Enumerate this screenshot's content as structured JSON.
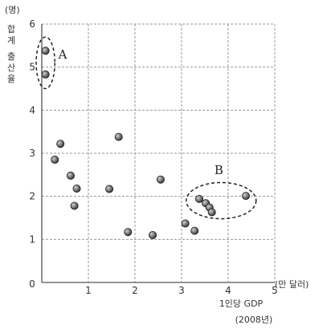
{
  "chart_data": {
    "type": "scatter",
    "title": "",
    "ylabel": "합계 출산율",
    "yunit": "(명)",
    "xlabel": "1인당 GDP",
    "xlabel_year": "(2008년)",
    "xunit": "(만 달러)",
    "xlim": [
      0,
      5
    ],
    "ylim": [
      0,
      6
    ],
    "origin_label": "0",
    "xticks": [
      1,
      2,
      3,
      4,
      5
    ],
    "yticks": [
      1,
      2,
      3,
      4,
      5,
      6
    ],
    "grid": true,
    "colors": {
      "point": "#3a3a3a",
      "grid": "#9a9a9a",
      "axis": "#555555"
    },
    "points": [
      {
        "x": 0.08,
        "y": 5.38
      },
      {
        "x": 0.08,
        "y": 4.83
      },
      {
        "x": 0.28,
        "y": 2.85
      },
      {
        "x": 0.4,
        "y": 3.22
      },
      {
        "x": 0.62,
        "y": 2.48
      },
      {
        "x": 0.75,
        "y": 2.18
      },
      {
        "x": 0.7,
        "y": 1.78
      },
      {
        "x": 1.45,
        "y": 2.17
      },
      {
        "x": 1.65,
        "y": 3.38
      },
      {
        "x": 1.85,
        "y": 1.17
      },
      {
        "x": 2.38,
        "y": 1.1
      },
      {
        "x": 2.55,
        "y": 2.39
      },
      {
        "x": 3.08,
        "y": 1.37
      },
      {
        "x": 3.28,
        "y": 1.2
      },
      {
        "x": 3.38,
        "y": 1.94
      },
      {
        "x": 3.52,
        "y": 1.84
      },
      {
        "x": 3.6,
        "y": 1.74
      },
      {
        "x": 3.65,
        "y": 1.63
      },
      {
        "x": 4.38,
        "y": 2.01
      }
    ],
    "groups": [
      {
        "label": "A",
        "cx": 0.08,
        "cy": 5.1,
        "rx": 0.2,
        "ry": 0.6,
        "label_x": 0.45,
        "label_y": 5.2
      },
      {
        "label": "B",
        "cx": 3.85,
        "cy": 1.9,
        "rx": 0.75,
        "ry": 0.42,
        "label_x": 3.8,
        "label_y": 2.52
      }
    ]
  }
}
